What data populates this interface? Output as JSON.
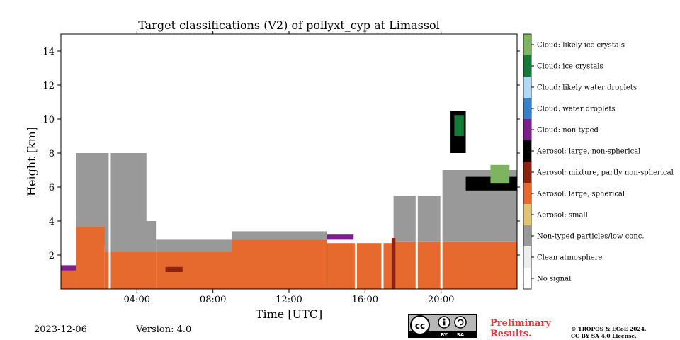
{
  "chart_data": {
    "type": "heatmap",
    "title": "Target classifications (V2) of pollyxt_cyp at Limassol",
    "xlabel": "Time [UTC]",
    "ylabel": "Height [km]",
    "xlim_hours": [
      0,
      24
    ],
    "ylim_km": [
      0,
      15
    ],
    "x_ticks": [
      {
        "value": 4,
        "label": "04:00"
      },
      {
        "value": 8,
        "label": "08:00"
      },
      {
        "value": 12,
        "label": "12:00"
      },
      {
        "value": 16,
        "label": "16:00"
      },
      {
        "value": 20,
        "label": "20:00"
      }
    ],
    "y_ticks": [
      {
        "value": 2,
        "label": "2"
      },
      {
        "value": 4,
        "label": "4"
      },
      {
        "value": 6,
        "label": "6"
      },
      {
        "value": 8,
        "label": "8"
      },
      {
        "value": 10,
        "label": "10"
      },
      {
        "value": 12,
        "label": "12"
      },
      {
        "value": 14,
        "label": "14"
      }
    ],
    "classes": [
      {
        "label": "No signal",
        "color": "#ffffff"
      },
      {
        "label": "Clean atmosphere",
        "color": "#eeeeee"
      },
      {
        "label": "Non-typed particles/low conc.",
        "color": "#999999"
      },
      {
        "label": "Aerosol: small",
        "color": "#e0c374"
      },
      {
        "label": "Aerosol: large, spherical",
        "color": "#e6692e"
      },
      {
        "label": "Aerosol: mixture, partly non-spherical",
        "color": "#8c2210"
      },
      {
        "label": "Aerosol: large, non-spherical",
        "color": "#000000"
      },
      {
        "label": "Cloud: non-typed",
        "color": "#7c1e8c"
      },
      {
        "label": "Cloud: water droplets",
        "color": "#3583c6"
      },
      {
        "label": "Cloud: likely water droplets",
        "color": "#b3d8f2"
      },
      {
        "label": "Cloud: ice crystals",
        "color": "#137a3a"
      },
      {
        "label": "Cloud: likely ice crystals",
        "color": "#7eb35f"
      }
    ],
    "layers": [
      {
        "class": "Aerosol: large, spherical",
        "segments": [
          {
            "t0": 0.0,
            "t1": 0.8,
            "h0": 0.0,
            "h1": 1.2
          },
          {
            "t0": 0.8,
            "t1": 2.3,
            "h0": 0.0,
            "h1": 2.5
          },
          {
            "t0": 2.3,
            "t1": 5.0,
            "h0": 0.0,
            "h1": 2.2
          },
          {
            "t0": 5.0,
            "t1": 9.0,
            "h0": 0.0,
            "h1": 2.2
          },
          {
            "t0": 9.0,
            "t1": 14.0,
            "h0": 0.0,
            "h1": 2.9
          },
          {
            "t0": 14.0,
            "t1": 17.5,
            "h0": 0.0,
            "h1": 2.7
          },
          {
            "t0": 17.5,
            "t1": 24.0,
            "h0": 0.0,
            "h1": 2.8
          }
        ]
      },
      {
        "class": "Aerosol: large, spherical",
        "segments": [
          {
            "t0": 0.8,
            "t1": 4.5,
            "h0": 2.5,
            "h1": 3.7
          }
        ]
      },
      {
        "class": "Non-typed particles/low conc.",
        "segments": [
          {
            "t0": 0.8,
            "t1": 4.5,
            "h0": 3.7,
            "h1": 8.0
          },
          {
            "t0": 2.3,
            "t1": 5.0,
            "h0": 2.2,
            "h1": 4.0
          },
          {
            "t0": 5.0,
            "t1": 9.0,
            "h0": 2.2,
            "h1": 2.9
          },
          {
            "t0": 9.0,
            "t1": 14.0,
            "h0": 2.9,
            "h1": 3.4
          },
          {
            "t0": 17.5,
            "t1": 24.0,
            "h0": 2.8,
            "h1": 5.5
          },
          {
            "t0": 20.0,
            "t1": 24.0,
            "h0": 5.5,
            "h1": 7.0
          }
        ]
      },
      {
        "class": "Aerosol: large, non-spherical",
        "segments": [
          {
            "t0": 20.5,
            "t1": 21.3,
            "h0": 8.0,
            "h1": 10.5
          },
          {
            "t0": 21.3,
            "t1": 24.0,
            "h0": 5.8,
            "h1": 6.6
          }
        ]
      },
      {
        "class": "Cloud: ice crystals",
        "segments": [
          {
            "t0": 20.7,
            "t1": 21.2,
            "h0": 9.0,
            "h1": 10.2
          }
        ]
      },
      {
        "class": "Cloud: likely ice crystals",
        "segments": [
          {
            "t0": 22.6,
            "t1": 23.6,
            "h0": 6.2,
            "h1": 7.3
          }
        ]
      },
      {
        "class": "Cloud: non-typed",
        "segments": [
          {
            "t0": 0.0,
            "t1": 0.8,
            "h0": 1.1,
            "h1": 1.4
          },
          {
            "t0": 14.0,
            "t1": 15.4,
            "h0": 2.9,
            "h1": 3.2
          }
        ]
      },
      {
        "class": "Aerosol: mixture, partly non-spherical",
        "segments": [
          {
            "t0": 5.5,
            "t1": 6.4,
            "h0": 1.0,
            "h1": 1.3
          },
          {
            "t0": 17.4,
            "t1": 17.6,
            "h0": 0.0,
            "h1": 3.0
          }
        ]
      }
    ],
    "gaps_hours": [
      2.55,
      15.5,
      16.9,
      18.7,
      20.0
    ]
  },
  "footer": {
    "date": "2023-12-06",
    "version": "Version: 4.0",
    "cc_label": "cc",
    "cc_by": "BY",
    "cc_sa": "SA",
    "preliminary_line1": "Preliminary",
    "preliminary_line2": "Results.",
    "copyright_line1": "© TROPOS & ECoE 2024.",
    "copyright_line2": "CC BY SA 4.0 License."
  }
}
